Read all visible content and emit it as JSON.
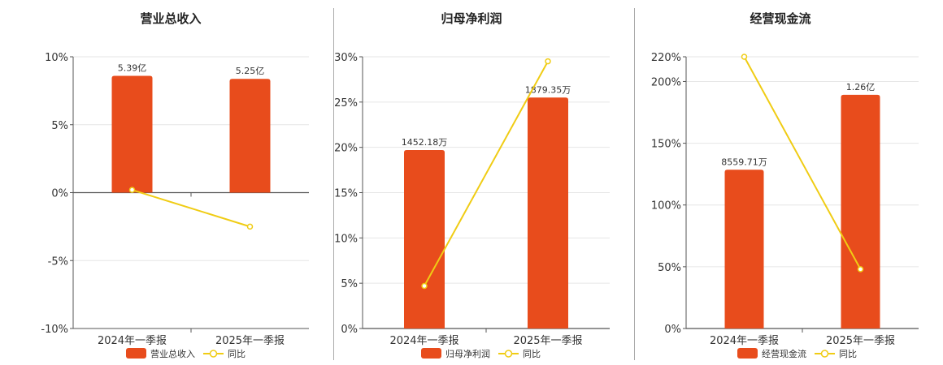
{
  "colors": {
    "bar": "#e84c1c",
    "line": "#f0cc14",
    "grid": "#e6e6e6",
    "axis": "#555555"
  },
  "chart_data": [
    {
      "type": "bar",
      "title": "营业总收入",
      "categories": [
        "2024年一季报",
        "2025年一季报"
      ],
      "bar_series": {
        "name": "营业总收入",
        "values": [
          5.39,
          5.25
        ],
        "labels": [
          "5.39亿",
          "5.25亿"
        ]
      },
      "line_series": {
        "name": "同比",
        "values": [
          0.2,
          -2.5
        ]
      },
      "yticks": [
        "10%",
        "5%",
        "0%",
        "-5%",
        "-10%"
      ],
      "ylim": [
        -10,
        10
      ],
      "grid": true,
      "legend": "bottom"
    },
    {
      "type": "bar",
      "title": "归母净利润",
      "categories": [
        "2024年一季报",
        "2025年一季报"
      ],
      "bar_series": {
        "name": "归母净利润",
        "values": [
          1452.18,
          1879.35
        ],
        "labels": [
          "1452.18万",
          "1879.35万"
        ]
      },
      "line_series": {
        "name": "同比",
        "values": [
          4.7,
          29.5
        ]
      },
      "yticks": [
        "30%",
        "25%",
        "20%",
        "15%",
        "10%",
        "5%",
        "0%"
      ],
      "ylim": [
        0,
        30
      ],
      "grid": true,
      "legend": "bottom"
    },
    {
      "type": "bar",
      "title": "经营现金流",
      "categories": [
        "2024年一季报",
        "2025年一季报"
      ],
      "bar_series": {
        "name": "经营现金流",
        "values": [
          8559.71,
          12600
        ],
        "labels": [
          "8559.71万",
          "1.26亿"
        ]
      },
      "line_series": {
        "name": "同比",
        "values": [
          220,
          48
        ]
      },
      "yticks": [
        "220%",
        "200%",
        "150%",
        "100%",
        "50%",
        "0%"
      ],
      "ylim": [
        0,
        220
      ],
      "grid": true,
      "legend": "bottom"
    }
  ]
}
